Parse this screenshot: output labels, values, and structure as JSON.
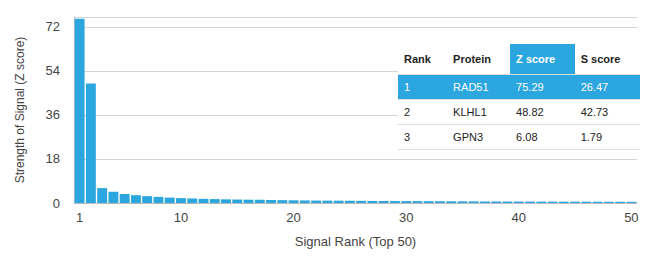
{
  "chart_data": {
    "type": "bar",
    "x_label": "Signal Rank (Top 50)",
    "y_label": "Strength of Signal (Z score)",
    "categories": [
      "1",
      null,
      null,
      null,
      null,
      null,
      null,
      null,
      null,
      "10",
      null,
      null,
      null,
      null,
      null,
      null,
      null,
      null,
      null,
      "20",
      null,
      null,
      null,
      null,
      null,
      null,
      null,
      null,
      null,
      "30",
      null,
      null,
      null,
      null,
      null,
      null,
      null,
      null,
      null,
      "40",
      null,
      null,
      null,
      null,
      null,
      null,
      null,
      null,
      null,
      "50"
    ],
    "values": [
      75.29,
      48.82,
      6.08,
      4.6,
      3.7,
      3.2,
      2.8,
      2.5,
      2.2,
      2.0,
      1.85,
      1.7,
      1.6,
      1.5,
      1.42,
      1.35,
      1.28,
      1.22,
      1.16,
      1.1,
      1.05,
      1.0,
      0.97,
      0.94,
      0.91,
      0.88,
      0.85,
      0.82,
      0.8,
      0.78,
      0.76,
      0.74,
      0.72,
      0.7,
      0.68,
      0.66,
      0.64,
      0.62,
      0.61,
      0.6,
      0.58,
      0.57,
      0.56,
      0.55,
      0.54,
      0.53,
      0.52,
      0.51,
      0.5,
      0.49
    ],
    "color": "#2ba6df",
    "ylim": [
      0,
      76
    ],
    "yticks": [
      0,
      18,
      36,
      54,
      72
    ],
    "grid": true,
    "table": {
      "columns": [
        "Rank",
        "Protein",
        "Z score",
        "S score"
      ],
      "rows": [
        [
          1,
          "RAD51",
          75.29,
          26.47
        ],
        [
          2,
          "KLHL1",
          48.82,
          42.73
        ],
        [
          3,
          "GPN3",
          6.08,
          1.79
        ]
      ]
    }
  }
}
